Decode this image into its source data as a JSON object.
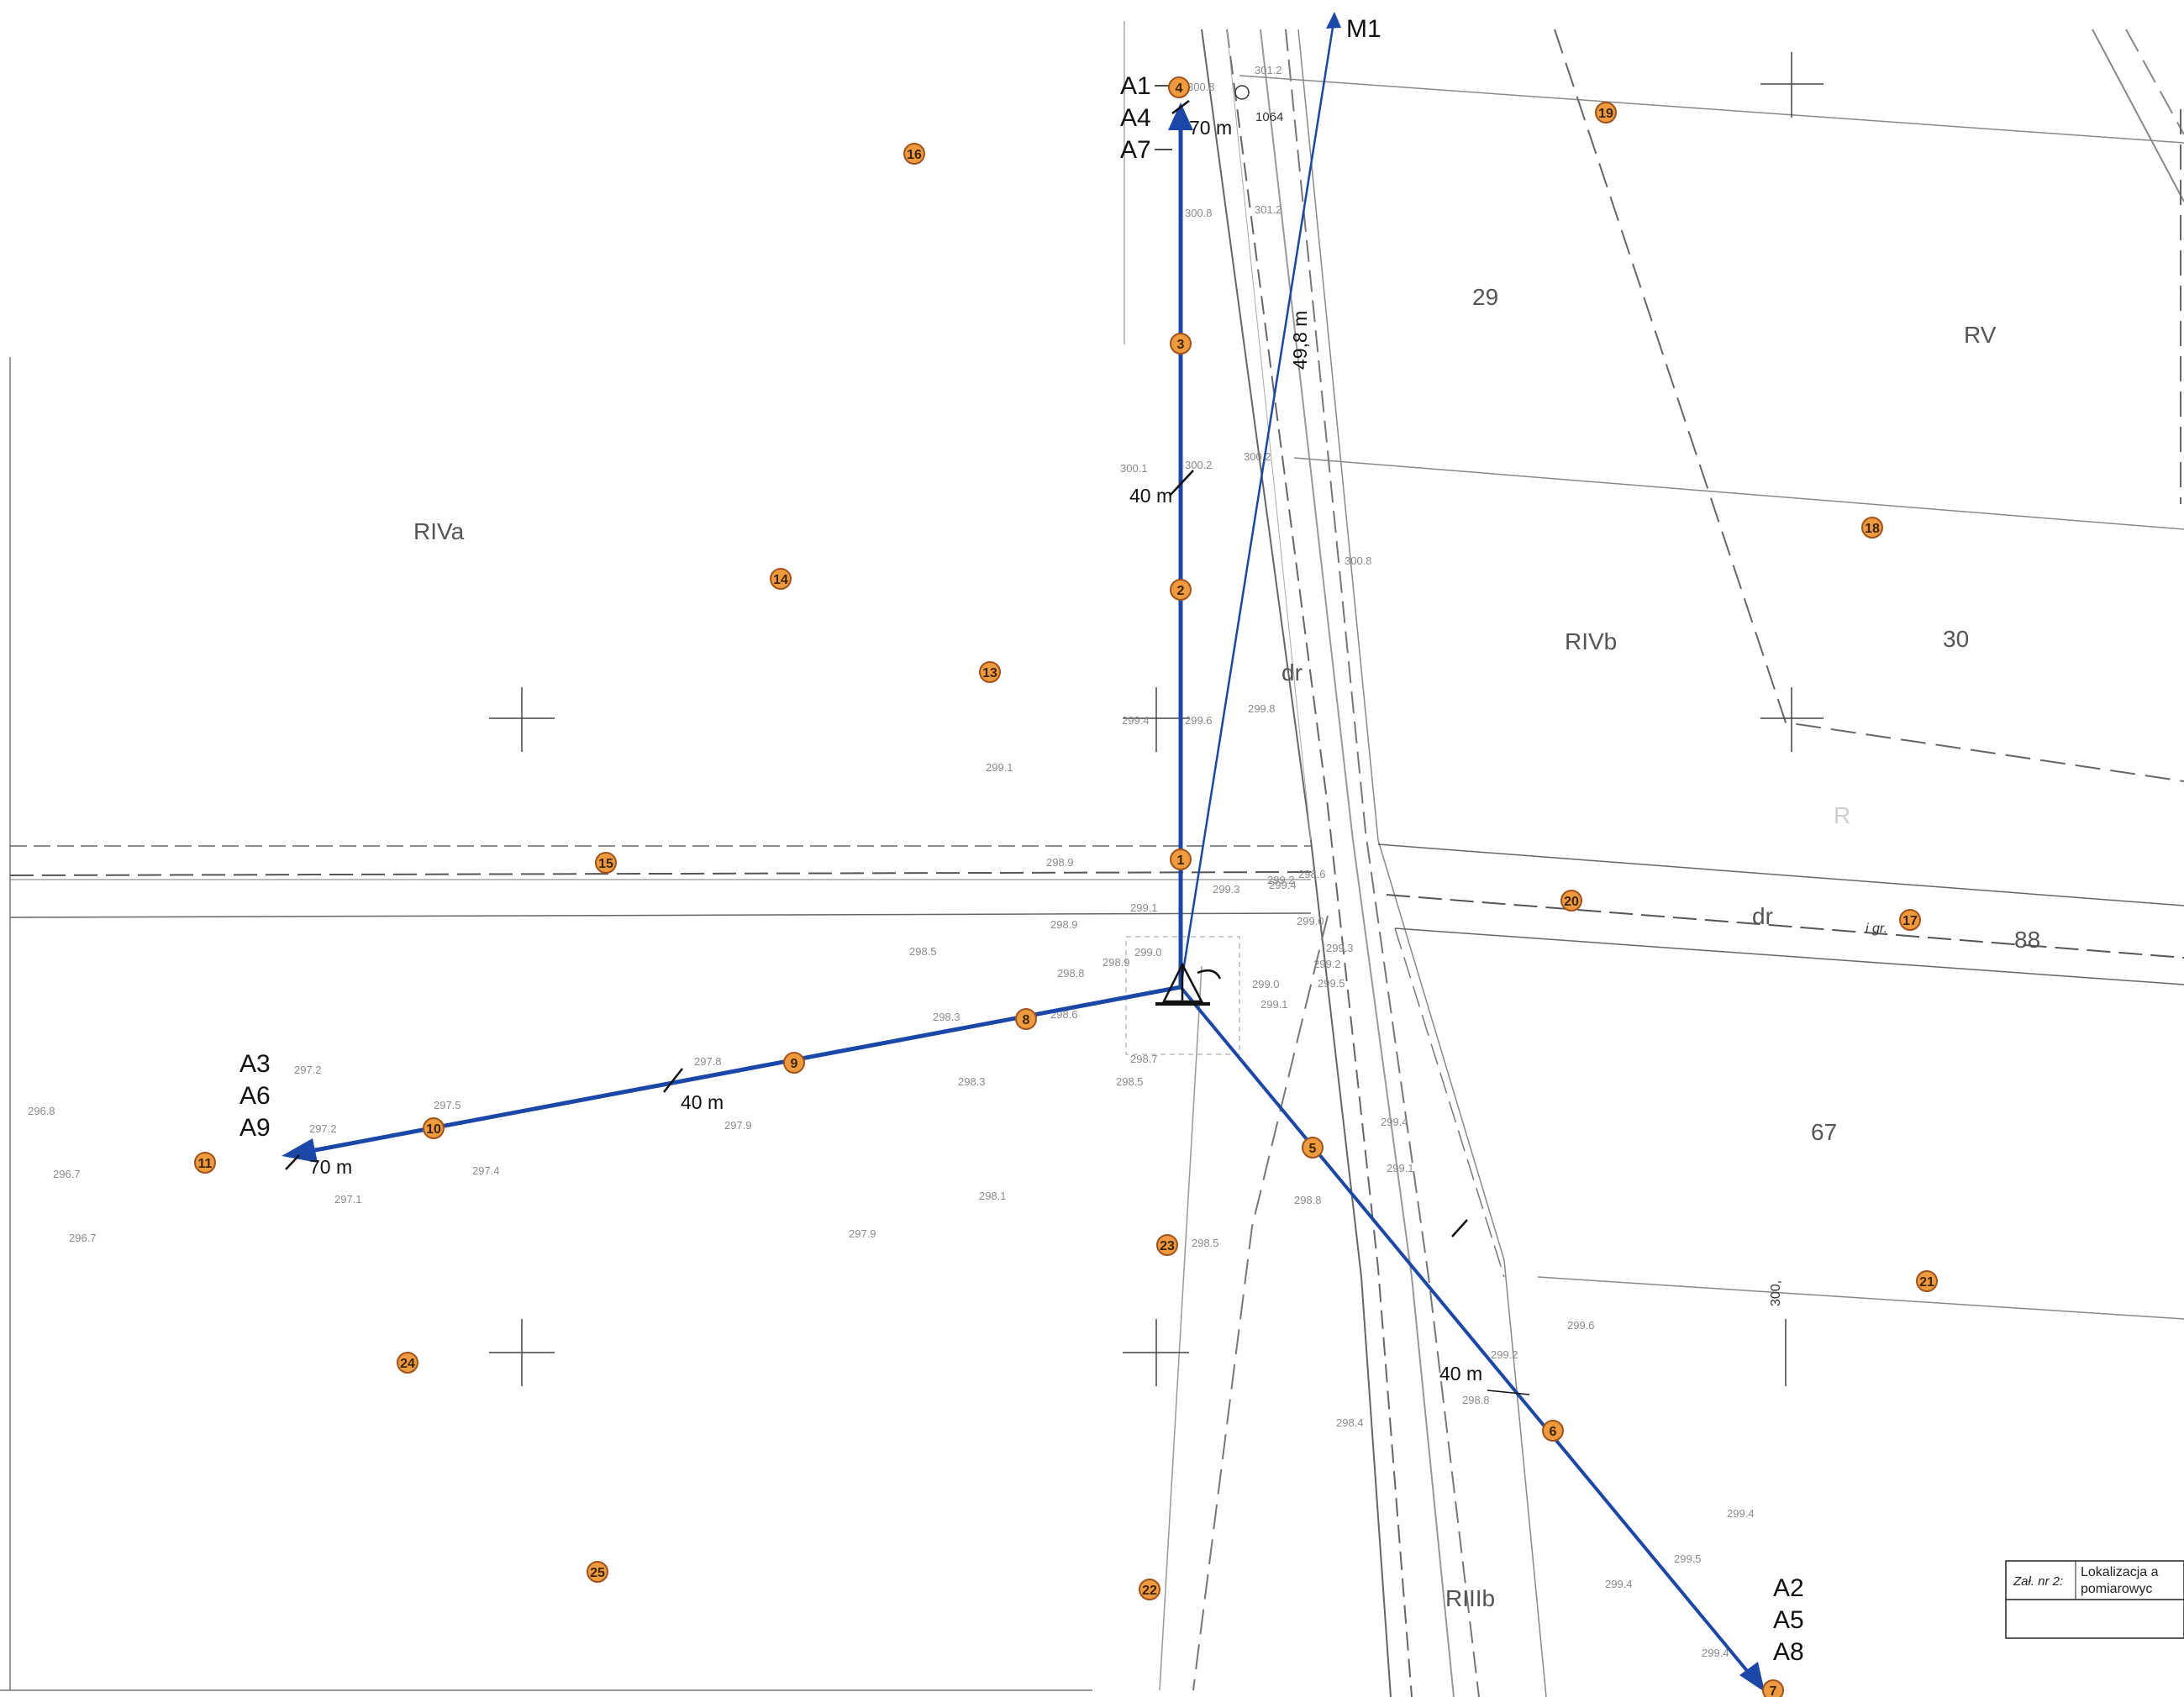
{
  "mast_label": "M1",
  "mast_distance": "49,8 m",
  "arms": {
    "north": {
      "labels": [
        "A1",
        "A4",
        "A7"
      ],
      "mid_distance": "40 m",
      "end_distance": "70 m"
    },
    "west": {
      "labels": [
        "A3",
        "A6",
        "A9"
      ],
      "mid_distance": "40 m",
      "end_distance": "70 m"
    },
    "southeast": {
      "labels": [
        "A2",
        "A5",
        "A8"
      ],
      "mid_distance": "40 m"
    }
  },
  "measurement_points": [
    "1",
    "2",
    "3",
    "4",
    "5",
    "6",
    "7",
    "8",
    "9",
    "10",
    "11",
    "13",
    "14",
    "15",
    "16",
    "17",
    "18",
    "19",
    "20",
    "21",
    "22",
    "23",
    "24",
    "25"
  ],
  "area_labels": {
    "riva": "RIVa",
    "rivb": "RIVb",
    "rv": "RV",
    "r": "R",
    "riiib": "RIIIb",
    "p29": "29",
    "p30": "30",
    "p67": "67",
    "p88": "88",
    "dr1": "dr",
    "dr2": "dr",
    "igr": "i gr.",
    "p1064": "1064",
    "side_num": "300,"
  },
  "elevations": [
    "301.2",
    "300.8",
    "300.8",
    "301.2",
    "300.1",
    "300.2",
    "300.2",
    "300.8",
    "299.4",
    "299.6",
    "299.8",
    "299.1",
    "298.9",
    "299.1",
    "299.3",
    "299.4",
    "298.6",
    "298.5",
    "298.8",
    "298.9",
    "299.0",
    "298.9",
    "298.3",
    "298.6",
    "298.7",
    "298.5",
    "298.3",
    "297.8",
    "297.2",
    "297.5",
    "296.8",
    "297.2",
    "297.9",
    "296.7",
    "297.4",
    "297.1",
    "296.7",
    "298.1",
    "297.9",
    "298.5",
    "298.8",
    "299.4",
    "299.1",
    "299.6",
    "299.2",
    "298.8",
    "298.4",
    "299.4",
    "299.5",
    "299.4",
    "299.4",
    "299.2",
    "299.0",
    "299.2",
    "299.0",
    "299.1",
    "299.3",
    "299.5"
  ],
  "title_block": {
    "attachment": "Zał. nr 2:",
    "line1": "Lokalizacja a",
    "line2": "pomiarowyc"
  },
  "colors": {
    "survey_line": "#1a47a8",
    "marker_fill": "#f09a3e",
    "marker_stroke": "#a0521a"
  }
}
